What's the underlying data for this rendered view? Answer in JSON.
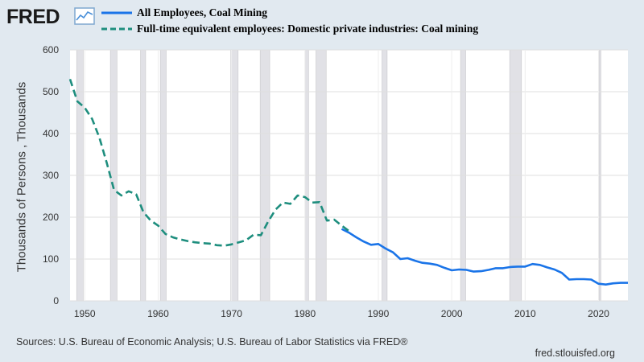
{
  "brand": {
    "logo_text": "FRED",
    "logo_icon": "trend-line-icon"
  },
  "site_url": "fred.stlouisfed.org",
  "source_text": "Sources: U.S. Bureau of Economic Analysis; U.S. Bureau of Labor Statistics via FRED®",
  "colors": {
    "background": "#e1e9f0",
    "plot_bg": "#ffffff",
    "grid": "#e6e6e6",
    "recession": "#e1e1e6",
    "series_blue": "#1a74e8",
    "series_teal": "#1e8e7e"
  },
  "chart_data": {
    "type": "line",
    "title": "",
    "xlabel": "",
    "ylabel": "Thousands of Persons , Thousands",
    "xlim": [
      1948,
      2024
    ],
    "ylim": [
      0,
      600
    ],
    "x_ticks": [
      1950,
      1960,
      1970,
      1980,
      1990,
      2000,
      2010,
      2020
    ],
    "y_ticks": [
      0,
      100,
      200,
      300,
      400,
      500,
      600
    ],
    "grid": true,
    "legend_position": "top-left",
    "recessions": [
      [
        1948.9,
        1949.8
      ],
      [
        1953.5,
        1954.4
      ],
      [
        1957.6,
        1958.3
      ],
      [
        1960.3,
        1961.1
      ],
      [
        1969.9,
        1970.9
      ],
      [
        1973.9,
        1975.2
      ],
      [
        1980.0,
        1980.5
      ],
      [
        1981.5,
        1982.9
      ],
      [
        1990.5,
        1991.2
      ],
      [
        2001.2,
        2001.9
      ],
      [
        2007.9,
        2009.5
      ],
      [
        2020.1,
        2020.3
      ]
    ],
    "series": [
      {
        "name": "All Employees, Coal Mining",
        "style": "solid",
        "color": "#1a74e8",
        "x": [
          1985,
          1986,
          1987,
          1988,
          1989,
          1990,
          1991,
          1992,
          1993,
          1994,
          1995,
          1996,
          1997,
          1998,
          1999,
          2000,
          2001,
          2002,
          2003,
          2004,
          2005,
          2006,
          2007,
          2008,
          2009,
          2010,
          2011,
          2012,
          2013,
          2014,
          2015,
          2016,
          2017,
          2018,
          2019,
          2020,
          2021,
          2022,
          2023,
          2024
        ],
        "y": [
          172,
          163,
          152,
          142,
          134,
          136,
          125,
          116,
          100,
          102,
          96,
          91,
          89,
          86,
          79,
          73,
          75,
          74,
          70,
          71,
          74,
          78,
          78,
          81,
          82,
          82,
          88,
          86,
          80,
          75,
          67,
          51,
          52,
          52,
          51,
          41,
          39,
          42,
          43,
          43
        ]
      },
      {
        "name": "Full-time equivalent employees: Domestic private industries: Coal mining",
        "style": "dashed",
        "color": "#1e8e7e",
        "x": [
          1948,
          1949,
          1950,
          1951,
          1952,
          1953,
          1954,
          1955,
          1956,
          1957,
          1958,
          1959,
          1960,
          1961,
          1962,
          1963,
          1964,
          1965,
          1966,
          1967,
          1968,
          1969,
          1970,
          1971,
          1972,
          1973,
          1974,
          1975,
          1976,
          1977,
          1978,
          1979,
          1980,
          1981,
          1982,
          1983,
          1984,
          1985,
          1986
        ],
        "y": [
          530,
          477,
          462,
          435,
          390,
          330,
          265,
          252,
          262,
          255,
          212,
          192,
          180,
          160,
          152,
          147,
          143,
          140,
          138,
          137,
          133,
          132,
          135,
          140,
          145,
          158,
          157,
          190,
          218,
          235,
          232,
          252,
          248,
          235,
          236,
          192,
          194,
          180,
          167
        ]
      }
    ]
  }
}
